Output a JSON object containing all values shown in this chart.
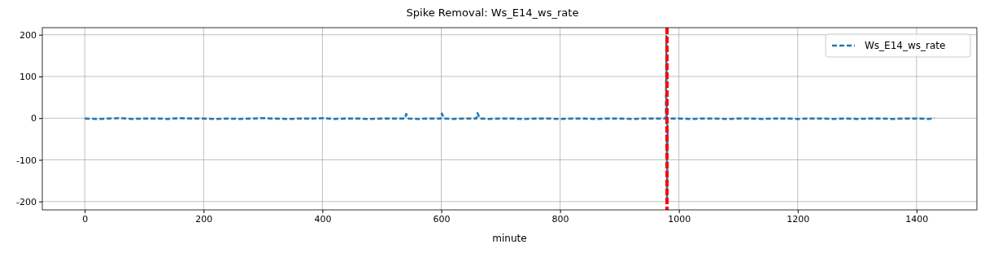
{
  "chart_data": {
    "type": "line",
    "title": "Spike Removal: Ws_E14_ws_rate",
    "xlabel": "minute",
    "xlim": [
      -71.5,
      1501.5
    ],
    "ylim": [
      -220,
      217
    ],
    "xticks": [
      0,
      200,
      400,
      600,
      800,
      1000,
      1200,
      1400
    ],
    "yticks": [
      -200,
      -100,
      0,
      100,
      200
    ],
    "grid": true,
    "legend": "top right",
    "line_style": "dashed",
    "marker": "none",
    "series": [
      {
        "name": "Ws_E14_ws_rate",
        "color": "#1f77b4",
        "x": [
          0,
          20,
          40,
          60,
          80,
          100,
          120,
          140,
          160,
          180,
          200,
          220,
          240,
          260,
          280,
          300,
          320,
          340,
          360,
          380,
          400,
          420,
          440,
          460,
          480,
          500,
          520,
          539,
          541,
          545,
          560,
          580,
          599,
          601,
          605,
          620,
          640,
          659,
          661,
          665,
          680,
          700,
          720,
          740,
          760,
          780,
          800,
          820,
          840,
          860,
          880,
          900,
          920,
          940,
          960,
          975,
          978,
          979,
          980,
          981,
          983,
          1000,
          1020,
          1040,
          1060,
          1080,
          1100,
          1120,
          1140,
          1160,
          1180,
          1200,
          1220,
          1240,
          1260,
          1280,
          1300,
          1320,
          1340,
          1360,
          1380,
          1400,
          1420,
          1430
        ],
        "values": [
          -1,
          -2,
          -1,
          0,
          -2,
          -1,
          -1,
          -2,
          0,
          -1,
          -1,
          -2,
          -1,
          -2,
          -1,
          0,
          -1,
          -2,
          -1,
          -1,
          0,
          -2,
          -1,
          -1,
          -2,
          -1,
          -1,
          -1,
          10,
          -1,
          -2,
          -1,
          -1,
          11,
          -1,
          -2,
          -1,
          -1,
          12,
          -1,
          -2,
          -1,
          -1,
          -2,
          -1,
          -1,
          -2,
          -1,
          -1,
          -2,
          -1,
          -1,
          -2,
          -1,
          -1,
          -1,
          0,
          197,
          -200,
          0,
          -1,
          -1,
          -2,
          -1,
          -1,
          -2,
          -1,
          -1,
          -2,
          -1,
          -1,
          -2,
          -1,
          -1,
          -2,
          -1,
          -2,
          -1,
          -1,
          -2,
          -1,
          -1,
          -2,
          0
        ]
      }
    ],
    "ref_lines": [
      {
        "axis": "x",
        "value": 980,
        "color": "#ff0000",
        "line_style": "dashed"
      }
    ]
  }
}
